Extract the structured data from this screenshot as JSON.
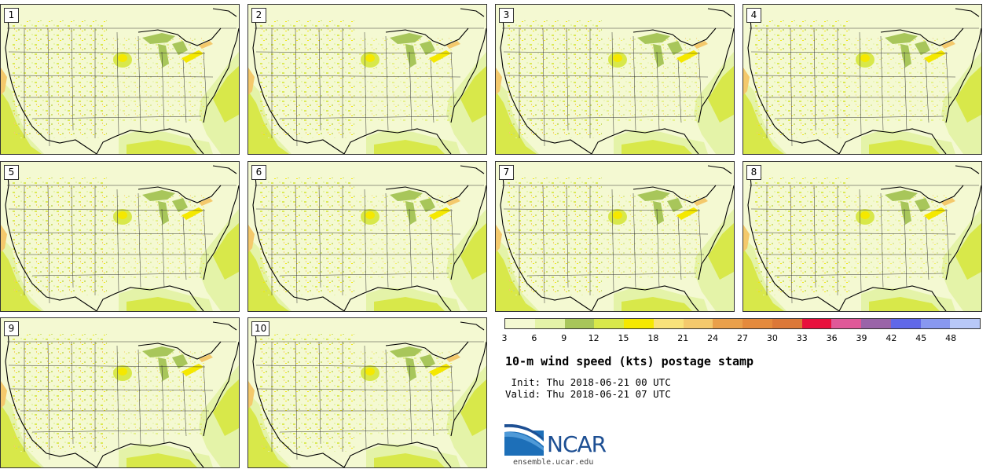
{
  "figure": {
    "title": "10-m wind speed (kts) postage stamp",
    "init_line": " Init: Thu 2018-06-21 00 UTC",
    "valid_line": "Valid: Thu 2018-06-21 07 UTC"
  },
  "members": [
    "1",
    "2",
    "3",
    "4",
    "5",
    "6",
    "7",
    "8",
    "9",
    "10"
  ],
  "colorbar": {
    "tick_labels": [
      "3",
      "6",
      "9",
      "12",
      "15",
      "18",
      "21",
      "24",
      "27",
      "30",
      "33",
      "36",
      "39",
      "42",
      "45",
      "48"
    ],
    "colors": [
      "#f4f9d2",
      "#e4f3a8",
      "#a8c65a",
      "#d8e84a",
      "#f5e800",
      "#f9e27a",
      "#f4c96c",
      "#eaa04a",
      "#e58a3c",
      "#dc7838",
      "#e8103c",
      "#e05898",
      "#9a64a8",
      "#6068e8",
      "#8898f0",
      "#b8c8f8"
    ]
  },
  "logo": {
    "text": "NCAR",
    "url": "ensemble.ucar.edu",
    "color": "#1d4f93"
  }
}
